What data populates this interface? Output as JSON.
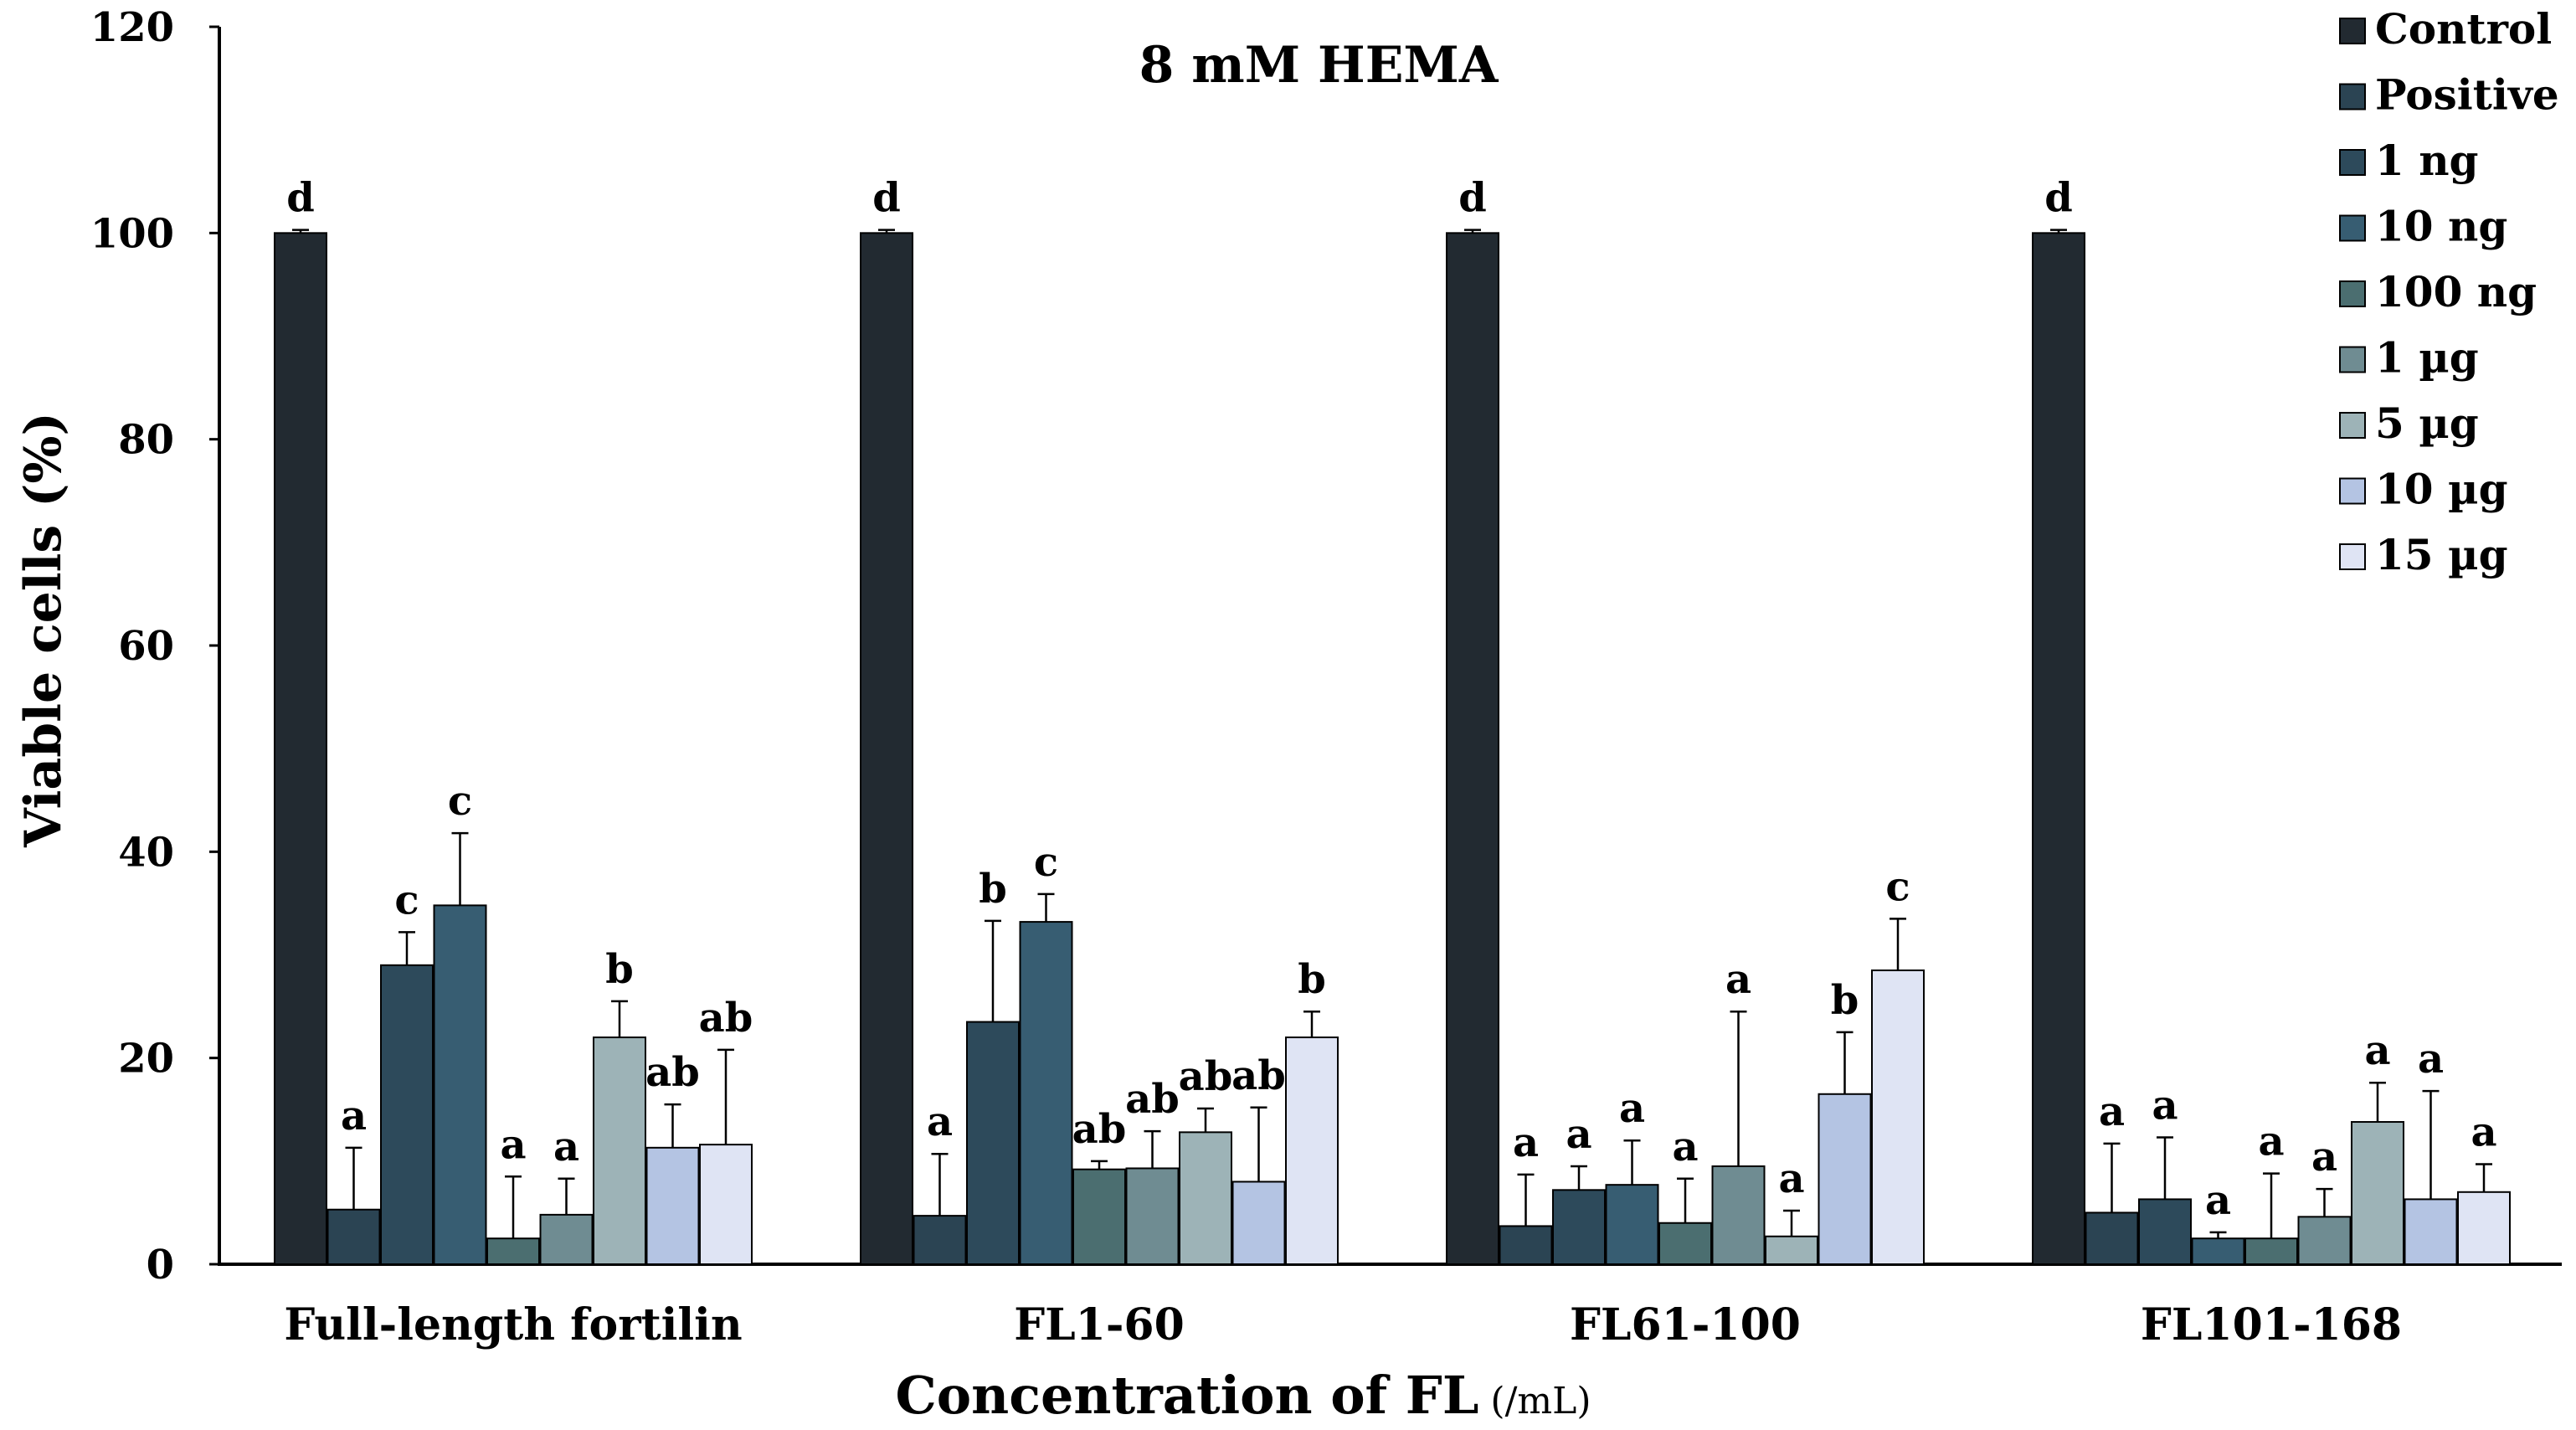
{
  "chart_data": {
    "type": "bar",
    "title": "8 mM HEMA",
    "xlabel": "Concentration of  FL",
    "xlabel_unit": "(/mL)",
    "ylabel": "Viable cells (%)",
    "ylim": [
      0,
      120
    ],
    "yticks": [
      0,
      20,
      40,
      60,
      80,
      100,
      120
    ],
    "grid": false,
    "legend_position": "top-right",
    "categories": [
      "Full-length fortilin",
      "FL1-60",
      "FL61-100",
      "FL101-168"
    ],
    "series": [
      {
        "name": "Control",
        "color": "#222a31",
        "values": [
          100,
          100,
          100,
          100
        ],
        "errors": [
          0.3,
          0.3,
          0.3,
          0.3
        ],
        "labels": [
          "d",
          "d",
          "d",
          "d"
        ]
      },
      {
        "name": "Positive",
        "color": "#2b4453",
        "values": [
          5.3,
          4.7,
          3.7,
          5.0
        ],
        "errors": [
          6.0,
          6.0,
          5.0,
          6.7
        ],
        "labels": [
          "a",
          "a",
          "a",
          "a"
        ]
      },
      {
        "name": "1 ng",
        "color": "#2d4a5b",
        "values": [
          29.0,
          23.5,
          7.2,
          6.3
        ],
        "errors": [
          3.2,
          9.8,
          2.3,
          6.0
        ],
        "labels": [
          "c",
          "b",
          "a",
          "a"
        ]
      },
      {
        "name": "10 ng",
        "color": "#375d72",
        "values": [
          34.8,
          33.2,
          7.7,
          2.5
        ],
        "errors": [
          7.0,
          2.7,
          4.3,
          0.6
        ],
        "labels": [
          "c",
          "c",
          "a",
          "a"
        ]
      },
      {
        "name": "100 ng",
        "color": "#4b6e70",
        "values": [
          2.5,
          9.2,
          4.0,
          2.5
        ],
        "errors": [
          6.0,
          0.8,
          4.3,
          6.3
        ],
        "labels": [
          "a",
          "ab",
          "a",
          "a"
        ]
      },
      {
        "name": "1 µg",
        "color": "#6f8c92",
        "values": [
          4.8,
          9.3,
          9.5,
          4.6
        ],
        "errors": [
          3.5,
          3.6,
          15.0,
          2.7
        ],
        "labels": [
          "a",
          "ab",
          "a",
          "a"
        ]
      },
      {
        "name": "5 µg",
        "color": "#9db3b7",
        "values": [
          22.0,
          12.8,
          2.7,
          13.8
        ],
        "errors": [
          3.5,
          2.3,
          2.5,
          3.8
        ],
        "labels": [
          "b",
          "ab",
          "a",
          "a"
        ]
      },
      {
        "name": "10 µg",
        "color": "#b4c4e3",
        "values": [
          11.3,
          8.0,
          16.5,
          6.3
        ],
        "errors": [
          4.2,
          7.2,
          6.0,
          10.5
        ],
        "labels": [
          "ab",
          "ab",
          "b",
          "a"
        ]
      },
      {
        "name": "15 µg",
        "color": "#dfe4f4",
        "values": [
          11.6,
          22.0,
          28.5,
          7.0
        ],
        "errors": [
          9.2,
          2.5,
          5.0,
          2.7
        ],
        "labels": [
          "ab",
          "b",
          "c",
          "a"
        ]
      }
    ]
  }
}
